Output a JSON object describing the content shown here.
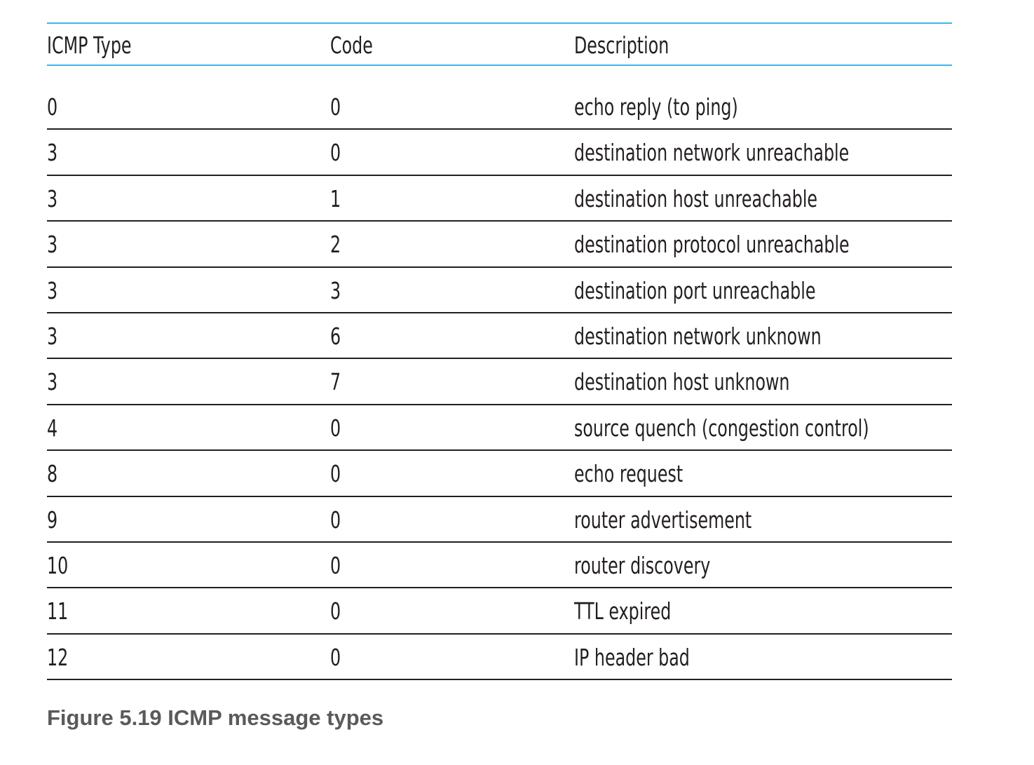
{
  "table": {
    "headers": [
      "ICMP Type",
      "Code",
      "Description"
    ],
    "rows": [
      [
        "0",
        "0",
        "echo reply (to ping)"
      ],
      [
        "3",
        "0",
        "destination network unreachable"
      ],
      [
        "3",
        "1",
        "destination host unreachable"
      ],
      [
        "3",
        "2",
        "destination protocol unreachable"
      ],
      [
        "3",
        "3",
        "destination port unreachable"
      ],
      [
        "3",
        "6",
        "destination network unknown"
      ],
      [
        "3",
        "7",
        "destination host unknown"
      ],
      [
        "4",
        "0",
        "source quench (congestion control)"
      ],
      [
        "8",
        "0",
        "echo request"
      ],
      [
        "9",
        "0",
        "router advertisement"
      ],
      [
        "10",
        "0",
        "router discovery"
      ],
      [
        "11",
        "0",
        "TTL expired"
      ],
      [
        "12",
        "0",
        "IP header bad"
      ]
    ]
  },
  "caption": "Figure 5.19 ICMP message types",
  "colors": {
    "header_rule": "#3fb6e8",
    "row_rule": "#231f20",
    "text": "#231f20",
    "caption": "#5a5a5a"
  }
}
